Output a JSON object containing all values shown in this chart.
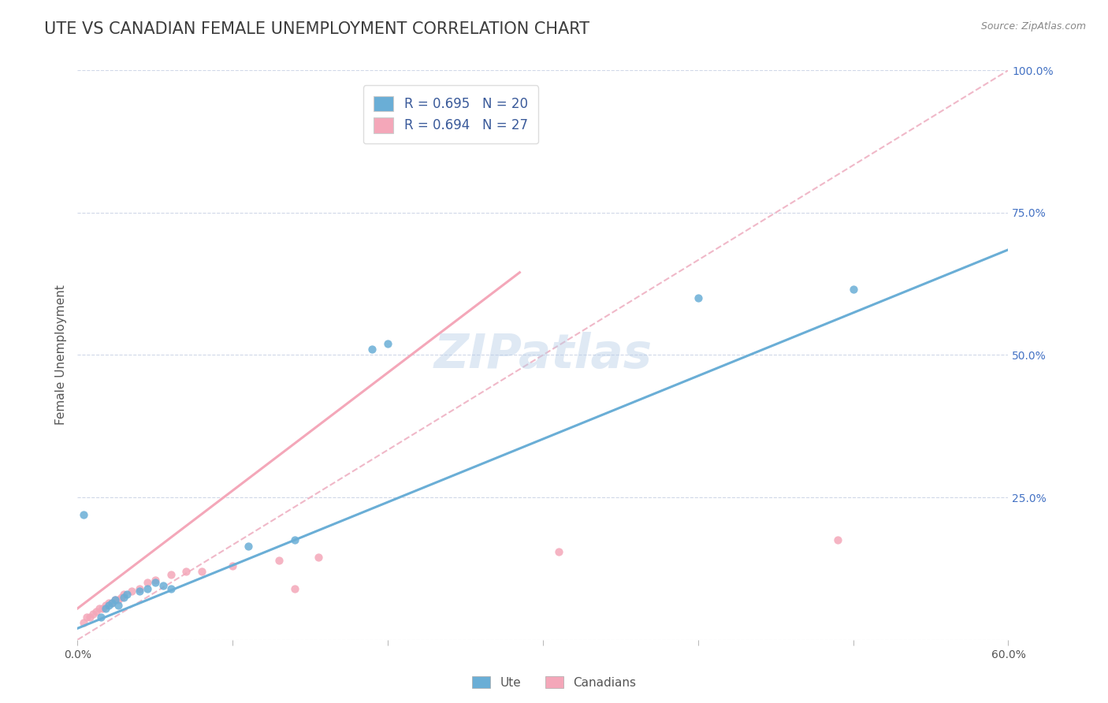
{
  "title": "UTE VS CANADIAN FEMALE UNEMPLOYMENT CORRELATION CHART",
  "source_text": "Source: ZipAtlas.com",
  "ylabel": "Female Unemployment",
  "x_min": 0.0,
  "x_max": 0.6,
  "y_min": 0.0,
  "y_max": 1.0,
  "x_ticks": [
    0.0,
    0.1,
    0.2,
    0.3,
    0.4,
    0.5,
    0.6
  ],
  "x_tick_labels": [
    "0.0%",
    "",
    "",
    "",
    "",
    "",
    "60.0%"
  ],
  "y_tick_labels_right": [
    "100.0%",
    "75.0%",
    "50.0%",
    "25.0%",
    ""
  ],
  "y_tick_positions_right": [
    1.0,
    0.75,
    0.5,
    0.25,
    0.0
  ],
  "watermark": "ZIPatlas",
  "legend_r_ute": "R = 0.695",
  "legend_n_ute": "N = 20",
  "legend_r_can": "R = 0.694",
  "legend_n_can": "N = 27",
  "legend_label_ute": "Ute",
  "legend_label_can": "Canadians",
  "ute_color": "#6aaed6",
  "can_color": "#f4a7b9",
  "ute_scatter": [
    [
      0.004,
      0.22
    ],
    [
      0.015,
      0.04
    ],
    [
      0.018,
      0.055
    ],
    [
      0.02,
      0.06
    ],
    [
      0.022,
      0.065
    ],
    [
      0.024,
      0.07
    ],
    [
      0.026,
      0.06
    ],
    [
      0.03,
      0.075
    ],
    [
      0.032,
      0.08
    ],
    [
      0.04,
      0.085
    ],
    [
      0.045,
      0.09
    ],
    [
      0.05,
      0.1
    ],
    [
      0.055,
      0.095
    ],
    [
      0.06,
      0.09
    ],
    [
      0.11,
      0.165
    ],
    [
      0.14,
      0.175
    ],
    [
      0.19,
      0.51
    ],
    [
      0.2,
      0.52
    ],
    [
      0.4,
      0.6
    ],
    [
      0.5,
      0.615
    ]
  ],
  "can_scatter": [
    [
      0.004,
      0.03
    ],
    [
      0.006,
      0.04
    ],
    [
      0.008,
      0.04
    ],
    [
      0.01,
      0.045
    ],
    [
      0.012,
      0.05
    ],
    [
      0.014,
      0.055
    ],
    [
      0.016,
      0.055
    ],
    [
      0.018,
      0.06
    ],
    [
      0.02,
      0.065
    ],
    [
      0.022,
      0.065
    ],
    [
      0.024,
      0.07
    ],
    [
      0.026,
      0.07
    ],
    [
      0.028,
      0.075
    ],
    [
      0.03,
      0.08
    ],
    [
      0.035,
      0.085
    ],
    [
      0.04,
      0.09
    ],
    [
      0.045,
      0.1
    ],
    [
      0.05,
      0.105
    ],
    [
      0.06,
      0.115
    ],
    [
      0.07,
      0.12
    ],
    [
      0.08,
      0.12
    ],
    [
      0.1,
      0.13
    ],
    [
      0.13,
      0.14
    ],
    [
      0.14,
      0.09
    ],
    [
      0.155,
      0.145
    ],
    [
      0.31,
      0.155
    ],
    [
      0.49,
      0.175
    ]
  ],
  "ute_line_x": [
    0.0,
    0.6
  ],
  "ute_line_y": [
    0.02,
    0.685
  ],
  "can_line_x": [
    0.0,
    0.285
  ],
  "can_line_y": [
    0.055,
    0.645
  ],
  "diagonal_line_x": [
    0.0,
    0.6
  ],
  "diagonal_line_y": [
    0.0,
    1.0
  ],
  "diagonal_color": "#f0b8c8",
  "title_color": "#3d3d3d",
  "axis_label_color": "#555555",
  "right_tick_color": "#4472c4",
  "grid_color": "#d0d8e8",
  "background_color": "#ffffff",
  "title_fontsize": 15,
  "axis_label_fontsize": 11,
  "tick_fontsize": 10,
  "legend_fontsize": 12
}
